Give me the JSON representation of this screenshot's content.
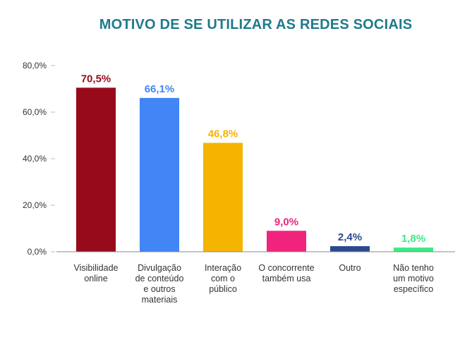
{
  "chart_data": {
    "type": "bar",
    "title": "MOTIVO DE SE UTILIZAR AS REDES SOCIAIS",
    "title_color": "#1f7a8c",
    "xlabel": "",
    "ylabel": "",
    "ylim": [
      0,
      80
    ],
    "yticks": [
      0,
      20,
      40,
      60,
      80
    ],
    "ytick_labels": [
      "0,0%",
      "20,0%",
      "40,0%",
      "60,0%",
      "80,0%"
    ],
    "grid": false,
    "categories": [
      [
        "Visibilidade",
        "online"
      ],
      [
        "Divulgação",
        "de conteúdo",
        "e outros",
        "materiais"
      ],
      [
        "Interação",
        "com o",
        "público"
      ],
      [
        "O concorrente",
        "também usa"
      ],
      [
        "Outro"
      ],
      [
        "Não tenho",
        "um motivo",
        "específico"
      ]
    ],
    "values": [
      70.5,
      66.1,
      46.8,
      9.0,
      2.4,
      1.8
    ],
    "value_labels": [
      "70,5%",
      "66,1%",
      "46,8%",
      "9,0%",
      "2,4%",
      "1,8%"
    ],
    "colors": [
      "#970a1c",
      "#4285f4",
      "#f4b400",
      "#f0247c",
      "#2b4a8c",
      "#3ceb86"
    ]
  }
}
